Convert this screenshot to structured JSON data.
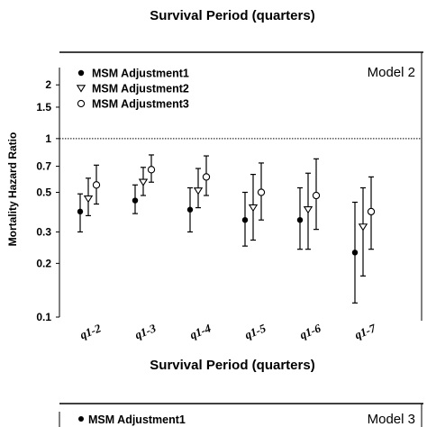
{
  "top_caption": "Survival Period (quarters)",
  "chart_data": [
    {
      "type": "scatter",
      "panel_label": "Model 2",
      "xlabel": "Survival Period (quarters)",
      "ylabel": "Mortality Hazard Ratio",
      "y_scale": "log",
      "ylim": [
        0.1,
        2.5
      ],
      "yticks": [
        0.1,
        0.2,
        0.3,
        0.5,
        0.7,
        1,
        1.5,
        2
      ],
      "ytick_labels": [
        "0.1",
        "0.2",
        "0.3",
        "0.5",
        "0.7",
        "1",
        "1.5",
        "2"
      ],
      "reference_line": 1,
      "legend_position": "top-left",
      "categories": [
        "q1-2",
        "q1-3",
        "q1-4",
        "q1-5",
        "q1-6",
        "q1-7"
      ],
      "series": [
        {
          "name": "MSM Adjustment1",
          "marker": "filled-circle",
          "values": [
            0.39,
            0.45,
            0.4,
            0.35,
            0.35,
            0.23
          ],
          "lower": [
            0.3,
            0.38,
            0.3,
            0.25,
            0.24,
            0.12
          ],
          "upper": [
            0.49,
            0.55,
            0.53,
            0.5,
            0.53,
            0.44
          ]
        },
        {
          "name": "MSM Adjustment2",
          "marker": "open-triangle-down",
          "values": [
            0.46,
            0.57,
            0.51,
            0.41,
            0.4,
            0.32
          ],
          "lower": [
            0.37,
            0.48,
            0.41,
            0.27,
            0.24,
            0.17
          ],
          "upper": [
            0.6,
            0.69,
            0.68,
            0.63,
            0.64,
            0.53
          ]
        },
        {
          "name": "MSM Adjustment3",
          "marker": "open-circle",
          "values": [
            0.55,
            0.67,
            0.61,
            0.5,
            0.48,
            0.39
          ],
          "lower": [
            0.43,
            0.57,
            0.48,
            0.35,
            0.31,
            0.24
          ],
          "upper": [
            0.71,
            0.81,
            0.8,
            0.73,
            0.77,
            0.61
          ]
        }
      ]
    },
    {
      "type": "scatter",
      "panel_label": "Model 3",
      "legend_position": "top-left",
      "series": [
        {
          "name": "MSM Adjustment1",
          "marker": "filled-circle"
        }
      ]
    }
  ]
}
